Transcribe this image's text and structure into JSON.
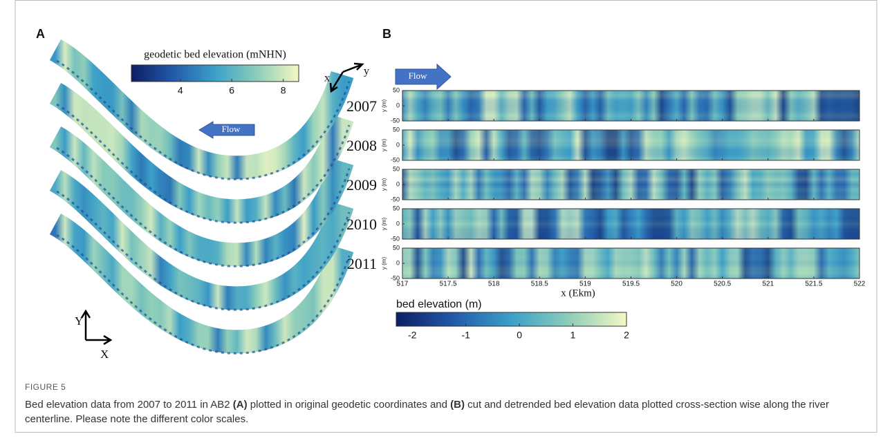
{
  "figure": {
    "panel_a": {
      "label": "A",
      "flow": "Flow",
      "colorbar": {
        "title": "geodetic bed elevation (mNHN)",
        "clim": [
          2.1,
          8.6
        ],
        "ticks": [
          4,
          6,
          8
        ]
      },
      "axes": {
        "x": "X",
        "y": "Y"
      },
      "local_axes": {
        "x": "x",
        "y": "y"
      }
    },
    "panel_b": {
      "label": "B",
      "flow": "Flow",
      "years": [
        "2007",
        "2008",
        "2009",
        "2010",
        "2011"
      ],
      "y_label": "y (m)",
      "ylim": [
        -50,
        50
      ],
      "yticks": [
        50,
        0,
        -50
      ],
      "x_label": "x (Ekm)",
      "xlim": [
        517,
        522
      ],
      "xticks": [
        517,
        517.5,
        518,
        518.5,
        519,
        519.5,
        520,
        520.5,
        521,
        521.5,
        522
      ],
      "colorbar": {
        "title": "bed elevation (m)",
        "clim": [
          -2.3,
          2.0
        ],
        "ticks": [
          -2,
          -1,
          0,
          1,
          2
        ]
      }
    },
    "caption": {
      "label": "FIGURE 5",
      "parts": [
        "Bed elevation data from 2007 to 2011 in AB2 ",
        "(A)",
        " plotted in original geodetic coordinates and ",
        "(B)",
        " cut and detrended bed elevation data plotted cross-section wise along the river centerline. Please note the different color scales."
      ]
    }
  }
}
